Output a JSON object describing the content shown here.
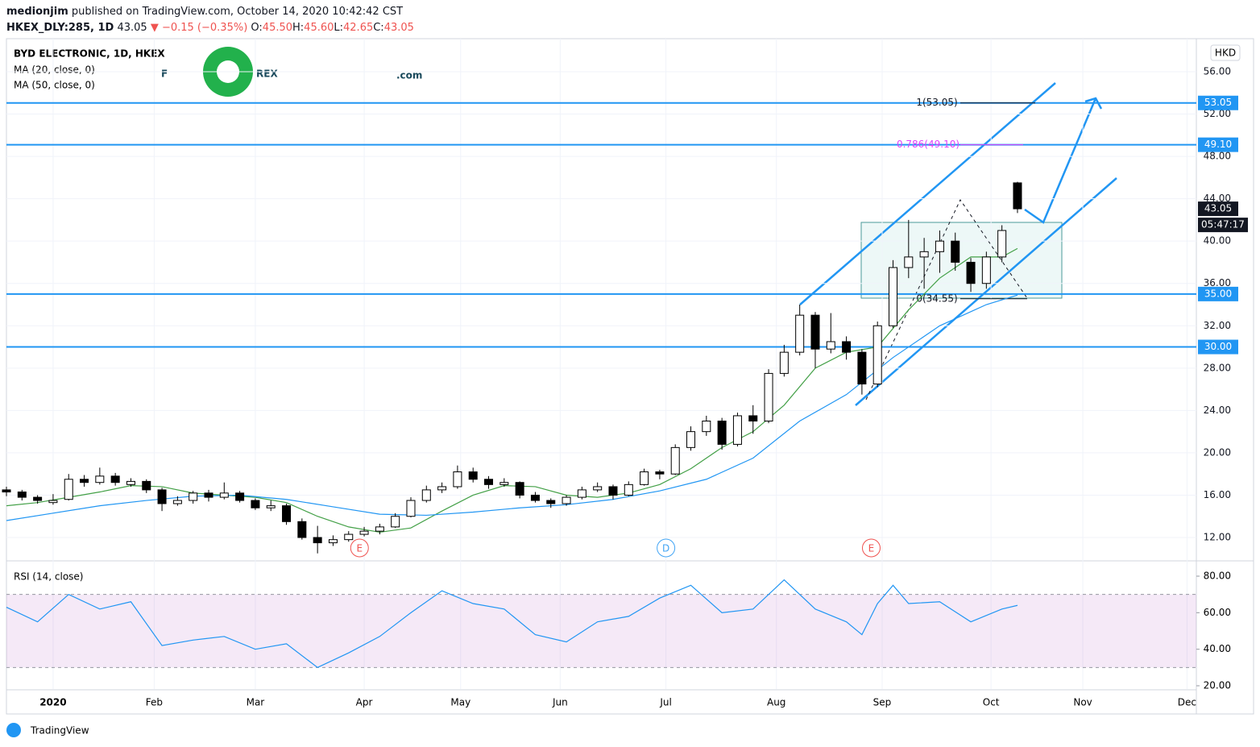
{
  "header": {
    "author": "medionjim",
    "published": "published on TradingView.com, October 14, 2020 10:42:42 CST",
    "symbol": "HKEX_DLY:285, 1D",
    "last": "43.05",
    "change": "▼ −0.15 (−0.35%)",
    "ohlc": [
      {
        "label": "O:",
        "value": "45.50"
      },
      {
        "label": "H:",
        "value": "45.60"
      },
      {
        "label": "L:",
        "value": "42.65"
      },
      {
        "label": "C:",
        "value": "43.05"
      }
    ]
  },
  "logo": {
    "left": "F",
    "right": "REX",
    ".com": ".com"
  },
  "footer": "TradingView",
  "chart_data": {
    "type": "candlestick",
    "title": "BYD ELECTRONIC, 1D, HKEX",
    "currency": "HKD",
    "up_color": "#ffffff",
    "down_color": "#000000",
    "xlim": [
      0,
      76.5
    ],
    "xticks": [
      {
        "value": 3.0,
        "label": "2020"
      },
      {
        "value": 9.5,
        "label": "Feb"
      },
      {
        "value": 16.0,
        "label": "Mar"
      },
      {
        "value": 23.0,
        "label": "Apr"
      },
      {
        "value": 29.2,
        "label": "May"
      },
      {
        "value": 35.6,
        "label": "Jun"
      },
      {
        "value": 42.4,
        "label": "Jul"
      },
      {
        "value": 49.5,
        "label": "Aug"
      },
      {
        "value": 56.3,
        "label": "Sep"
      },
      {
        "value": 63.3,
        "label": "Oct"
      },
      {
        "value": 69.2,
        "label": "Nov"
      },
      {
        "value": 75.9,
        "label": "Dec"
      }
    ],
    "ylim": [
      9.87,
      59.12
    ],
    "yticks": [
      {
        "value": 12,
        "label": "12.00"
      },
      {
        "value": 16,
        "label": "16.00"
      },
      {
        "value": 20,
        "label": "20.00"
      },
      {
        "value": 24,
        "label": "24.00"
      },
      {
        "value": 28,
        "label": "28.00"
      },
      {
        "value": 32,
        "label": "32.00"
      },
      {
        "value": 36,
        "label": "36.00"
      },
      {
        "value": 40,
        "label": "40.00"
      },
      {
        "value": 44,
        "label": "44.00"
      },
      {
        "value": 48,
        "label": "48.00"
      },
      {
        "value": 52,
        "label": "52.00"
      },
      {
        "value": 56,
        "label": "56.00"
      }
    ],
    "candles": [
      [
        16.5,
        16.8,
        15.9,
        16.3
      ],
      [
        16.3,
        16.5,
        15.5,
        15.8
      ],
      [
        15.8,
        16.0,
        15.2,
        15.5
      ],
      [
        15.3,
        16.1,
        15.1,
        15.5
      ],
      [
        15.6,
        18.0,
        15.5,
        17.5
      ],
      [
        17.5,
        17.9,
        16.8,
        17.2
      ],
      [
        17.2,
        18.6,
        17.0,
        17.8
      ],
      [
        17.8,
        18.1,
        16.9,
        17.2
      ],
      [
        17.0,
        17.6,
        16.8,
        17.3
      ],
      [
        17.3,
        17.5,
        16.2,
        16.5
      ],
      [
        16.5,
        16.7,
        14.5,
        15.2
      ],
      [
        15.2,
        15.9,
        15.0,
        15.5
      ],
      [
        15.5,
        16.4,
        15.2,
        16.2
      ],
      [
        16.2,
        16.5,
        15.4,
        15.8
      ],
      [
        15.8,
        17.2,
        15.6,
        16.2
      ],
      [
        16.2,
        16.4,
        15.3,
        15.5
      ],
      [
        15.5,
        15.7,
        14.6,
        14.8
      ],
      [
        14.8,
        15.5,
        14.5,
        15.0
      ],
      [
        15.0,
        15.2,
        13.2,
        13.5
      ],
      [
        13.5,
        13.8,
        11.8,
        12.0
      ],
      [
        12.0,
        13.1,
        10.5,
        11.5
      ],
      [
        11.5,
        12.2,
        11.2,
        11.8
      ],
      [
        11.8,
        12.6,
        11.6,
        12.3
      ],
      [
        12.3,
        13.0,
        12.1,
        12.6
      ],
      [
        12.6,
        13.3,
        12.3,
        13.0
      ],
      [
        13.0,
        14.3,
        12.9,
        14.0
      ],
      [
        14.0,
        15.8,
        13.9,
        15.5
      ],
      [
        15.5,
        16.9,
        15.3,
        16.5
      ],
      [
        16.5,
        17.2,
        16.2,
        16.8
      ],
      [
        16.8,
        18.8,
        16.6,
        18.2
      ],
      [
        18.2,
        18.6,
        17.2,
        17.5
      ],
      [
        17.5,
        17.8,
        16.6,
        17.0
      ],
      [
        17.0,
        17.6,
        16.8,
        17.2
      ],
      [
        17.2,
        17.3,
        15.7,
        16.0
      ],
      [
        16.0,
        16.3,
        15.3,
        15.5
      ],
      [
        15.5,
        15.7,
        14.8,
        15.2
      ],
      [
        15.2,
        16.0,
        15.0,
        15.8
      ],
      [
        15.8,
        16.8,
        15.6,
        16.5
      ],
      [
        16.5,
        17.2,
        16.3,
        16.8
      ],
      [
        16.8,
        17.0,
        15.6,
        16.0
      ],
      [
        16.0,
        17.3,
        15.9,
        17.0
      ],
      [
        17.0,
        18.5,
        16.9,
        18.2
      ],
      [
        18.2,
        18.4,
        17.5,
        18.0
      ],
      [
        18.0,
        20.8,
        17.9,
        20.5
      ],
      [
        20.5,
        22.5,
        20.2,
        22.0
      ],
      [
        22.0,
        23.5,
        21.6,
        23.0
      ],
      [
        23.0,
        23.3,
        20.3,
        20.8
      ],
      [
        20.8,
        23.8,
        20.6,
        23.5
      ],
      [
        23.5,
        24.5,
        21.8,
        23.0
      ],
      [
        23.0,
        27.9,
        22.8,
        27.5
      ],
      [
        27.5,
        30.2,
        27.2,
        29.5
      ],
      [
        29.5,
        34.0,
        29.2,
        33.0
      ],
      [
        33.0,
        33.3,
        28.0,
        29.8
      ],
      [
        29.8,
        33.2,
        29.4,
        30.5
      ],
      [
        30.5,
        31.0,
        28.8,
        29.5
      ],
      [
        29.5,
        29.8,
        25.5,
        26.5
      ],
      [
        26.5,
        32.4,
        26.2,
        32.0
      ],
      [
        32.0,
        38.2,
        31.8,
        37.5
      ],
      [
        37.5,
        42.0,
        36.5,
        38.5
      ],
      [
        38.5,
        40.3,
        35.5,
        39.0
      ],
      [
        39.0,
        41.0,
        37.0,
        40.0
      ],
      [
        40.0,
        40.8,
        37.2,
        38.0
      ],
      [
        38.0,
        38.4,
        35.2,
        36.0
      ],
      [
        36.0,
        39.0,
        35.5,
        38.5
      ],
      [
        38.5,
        41.5,
        38.0,
        41.0
      ],
      [
        45.5,
        45.6,
        42.65,
        43.05
      ]
    ],
    "series": [
      {
        "name": "MA (20, close, 0)",
        "color": "#43a047",
        "x": [
          0,
          2,
          4,
          6,
          8,
          10,
          12,
          14,
          16,
          18,
          20,
          22,
          24,
          26,
          28,
          30,
          32,
          34,
          36,
          38,
          40,
          42,
          44,
          46,
          48,
          50,
          52,
          54,
          56,
          58,
          60,
          62,
          64,
          65
        ],
        "values": [
          15.0,
          15.3,
          15.8,
          16.3,
          16.9,
          16.8,
          16.2,
          16.0,
          15.8,
          15.3,
          14.0,
          13.0,
          12.5,
          12.9,
          14.5,
          16.0,
          16.9,
          16.8,
          16.0,
          15.8,
          16.2,
          17.0,
          18.5,
          20.5,
          22.0,
          24.5,
          28.0,
          29.5,
          30.0,
          33.5,
          36.5,
          38.5,
          38.5,
          39.3
        ]
      },
      {
        "name": "MA (50, close, 0)",
        "color": "#2196f3",
        "x": [
          0,
          3,
          6,
          9,
          12,
          15,
          18,
          21,
          24,
          27,
          30,
          33,
          36,
          39,
          42,
          45,
          48,
          51,
          54,
          57,
          60,
          63,
          65
        ],
        "values": [
          13.6,
          14.3,
          15.0,
          15.5,
          15.9,
          16.0,
          15.6,
          14.9,
          14.2,
          14.1,
          14.4,
          14.8,
          15.1,
          15.6,
          16.4,
          17.5,
          19.5,
          23.0,
          25.5,
          29.0,
          32.0,
          34.0,
          34.9
        ]
      }
    ],
    "levels": [
      {
        "value": 53.05,
        "label": "53.05"
      },
      {
        "value": 49.1,
        "label": "49.10"
      },
      {
        "value": 35.0,
        "label": "35.00"
      },
      {
        "value": 30.0,
        "label": "30.00"
      }
    ],
    "level_color": "#2196f3",
    "last_price": {
      "value": 43.05,
      "label": "43.05",
      "countdown": "05:47:17"
    },
    "fib_labels": [
      {
        "text": "1(53.05)",
        "value": 53.05,
        "color": "#131722"
      },
      {
        "text": "0.786(49.10)",
        "value": 49.1,
        "color": "#e040fb"
      },
      {
        "text": "0(34.55)",
        "value": 34.55,
        "color": "#131722"
      }
    ],
    "events": [
      {
        "x": 22.7,
        "label": "E",
        "color": "#ef5350"
      },
      {
        "x": 42.4,
        "label": "D",
        "color": "#42a5f5"
      },
      {
        "x": 55.6,
        "label": "E",
        "color": "#ef5350"
      }
    ]
  },
  "rsi": {
    "title": "RSI (14, close)",
    "color": "#2196f3",
    "ylim": [
      18.24,
      87.94
    ],
    "yticks": [
      {
        "value": 20,
        "label": "20.00"
      },
      {
        "value": 40,
        "label": "40.00"
      },
      {
        "value": 60,
        "label": "60.00"
      },
      {
        "value": 80,
        "label": "80.00"
      }
    ],
    "bands": [
      30,
      70
    ],
    "x": [
      0,
      2,
      4,
      6,
      8,
      10,
      12,
      14,
      16,
      18,
      20,
      22,
      24,
      26,
      28,
      30,
      32,
      34,
      36,
      38,
      40,
      42,
      44,
      46,
      48,
      50,
      52,
      54,
      55,
      56,
      57,
      58,
      60,
      62,
      64,
      65
    ],
    "values": [
      63,
      55,
      70,
      62,
      66,
      42,
      45,
      47,
      40,
      43,
      30,
      38,
      47,
      60,
      72,
      65,
      62,
      48,
      44,
      55,
      58,
      68,
      75,
      60,
      62,
      78,
      62,
      55,
      48,
      65,
      75,
      65,
      66,
      55,
      62,
      64
    ]
  }
}
